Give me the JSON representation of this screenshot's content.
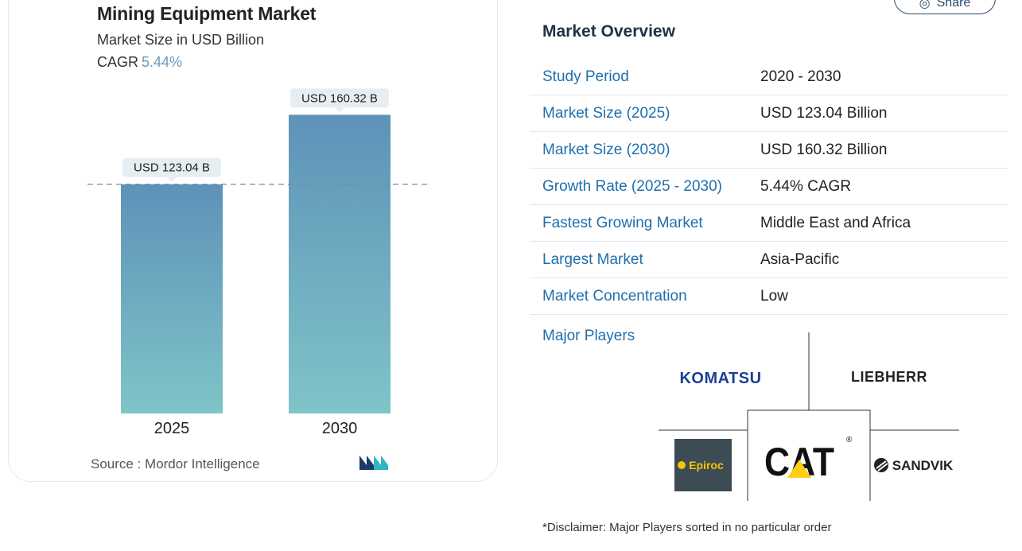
{
  "chart_data": {
    "type": "bar",
    "title": "Mining Equipment Market",
    "subtitle": "Market Size in USD Billion",
    "cagr_label": "CAGR",
    "cagr_value": "5.44%",
    "categories": [
      "2025",
      "2030"
    ],
    "values": [
      123.04,
      160.32
    ],
    "data_labels": [
      "USD 123.04 B",
      "USD 160.32 B"
    ],
    "reference_line": 123.04,
    "ylim": [
      0,
      175
    ],
    "gradient_top": "#5e92b8",
    "gradient_bottom": "#7fc4c8",
    "grid": false,
    "source": "Source :  Mordor Intelligence"
  },
  "overview": {
    "share_label": "Share",
    "title": "Market Overview",
    "rows": [
      {
        "label": "Study Period",
        "value": "2020 - 2030"
      },
      {
        "label": "Market Size (2025)",
        "value": "USD 123.04 Billion"
      },
      {
        "label": "Market Size (2030)",
        "value": "USD 160.32 Billion"
      },
      {
        "label": "Growth Rate (2025 - 2030)",
        "value": "5.44% CAGR"
      },
      {
        "label": "Fastest Growing Market",
        "value": "Middle East and Africa"
      },
      {
        "label": "Largest Market",
        "value": "Asia-Pacific"
      },
      {
        "label": "Market Concentration",
        "value": "Low"
      }
    ],
    "players_label": "Major Players",
    "players": [
      "KOMATSU",
      "LIEBHERR",
      "Epiroc",
      "CAT",
      "SANDVIK"
    ],
    "disclaimer": "*Disclaimer: Major Players sorted in no particular order"
  },
  "colors": {
    "accent_blue": "#1f6fad",
    "label_bg": "#e7eef2",
    "komatsu_blue": "#1b3f94",
    "epiroc_bg": "#3d4b55",
    "epiroc_yellow": "#f6c500",
    "cat_yellow": "#ffcd11"
  }
}
